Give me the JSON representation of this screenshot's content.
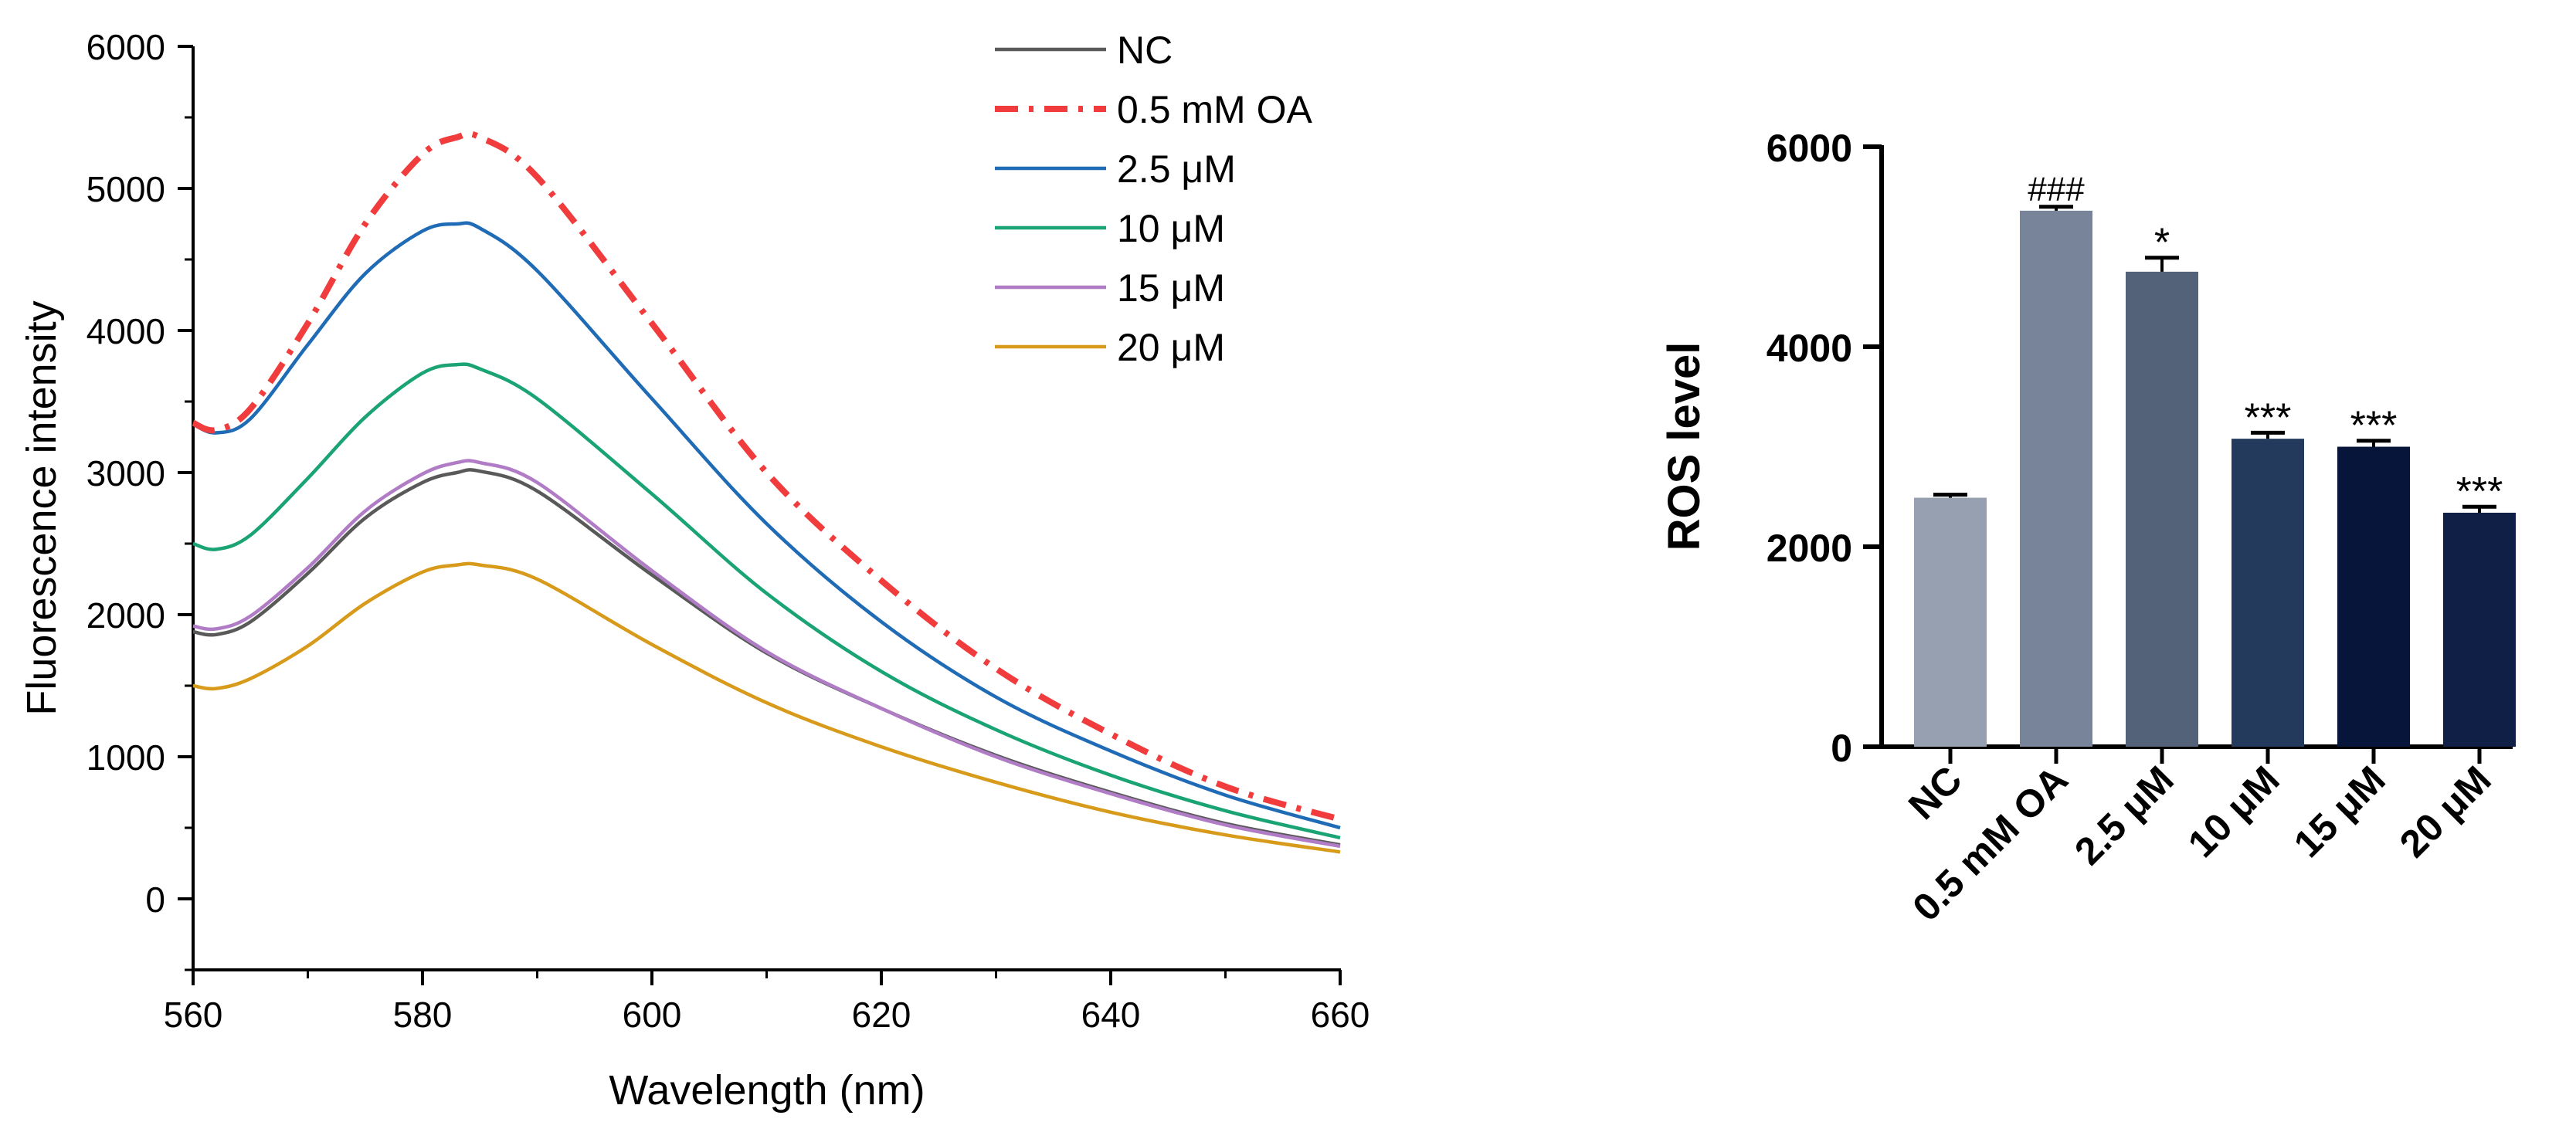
{
  "chart_data": [
    {
      "type": "line",
      "xlabel": "Wavelength (nm)",
      "ylabel": "Fluorescence intensity",
      "xlim": [
        560,
        660
      ],
      "ylim": [
        -500,
        6000
      ],
      "xticks": [
        560,
        580,
        600,
        620,
        640,
        660
      ],
      "yticks": [
        0,
        1000,
        2000,
        3000,
        4000,
        5000,
        6000
      ],
      "legend_position": "top-right",
      "x": [
        560,
        562,
        565,
        570,
        575,
        580,
        583,
        585,
        590,
        600,
        610,
        620,
        630,
        640,
        650,
        660
      ],
      "series": [
        {
          "name": "NC",
          "color": "#595959",
          "dash": "solid",
          "values": [
            1880,
            1860,
            1950,
            2290,
            2680,
            2930,
            3000,
            3010,
            2870,
            2280,
            1730,
            1340,
            1010,
            750,
            530,
            380
          ]
        },
        {
          "name": "0.5 mM OA",
          "color": "#f03c3c",
          "dash": "dashdot",
          "values": [
            3350,
            3300,
            3450,
            4050,
            4750,
            5240,
            5360,
            5360,
            5080,
            4050,
            3000,
            2240,
            1620,
            1160,
            790,
            560
          ]
        },
        {
          "name": "2.5 μM",
          "color": "#1f6bb5",
          "dash": "solid",
          "values": [
            3340,
            3280,
            3380,
            3900,
            4400,
            4700,
            4750,
            4720,
            4420,
            3520,
            2640,
            1950,
            1420,
            1040,
            730,
            500
          ]
        },
        {
          "name": "10 μM",
          "color": "#1aa373",
          "dash": "solid",
          "values": [
            2500,
            2460,
            2560,
            2960,
            3390,
            3700,
            3760,
            3730,
            3520,
            2850,
            2150,
            1600,
            1190,
            870,
            620,
            430
          ]
        },
        {
          "name": "15 μM",
          "color": "#b07cc6",
          "dash": "solid",
          "values": [
            1920,
            1900,
            1990,
            2330,
            2730,
            2990,
            3070,
            3070,
            2930,
            2310,
            1740,
            1340,
            1000,
            740,
            520,
            370
          ]
        },
        {
          "name": "20 μM",
          "color": "#d89a1a",
          "dash": "solid",
          "values": [
            1500,
            1480,
            1550,
            1780,
            2080,
            2300,
            2350,
            2350,
            2250,
            1790,
            1380,
            1070,
            820,
            610,
            450,
            330
          ]
        }
      ]
    },
    {
      "type": "bar",
      "ylabel": "ROS level",
      "ylim": [
        0,
        6000
      ],
      "yticks": [
        0,
        2000,
        4000,
        6000
      ],
      "categories": [
        "NC",
        "0.5 mM OA",
        "2.5 μM",
        "10 μM",
        "15 μM",
        "20 μM"
      ],
      "values": [
        2490,
        5360,
        4750,
        3080,
        3000,
        2340
      ],
      "errors": [
        30,
        40,
        140,
        60,
        60,
        60
      ],
      "annotations": [
        "",
        "###",
        "*",
        "***",
        "***",
        "***"
      ],
      "colors": [
        "#96a0b0",
        "#778499",
        "#536278",
        "#233a5c",
        "#07153a",
        "#0f1f45"
      ]
    }
  ]
}
